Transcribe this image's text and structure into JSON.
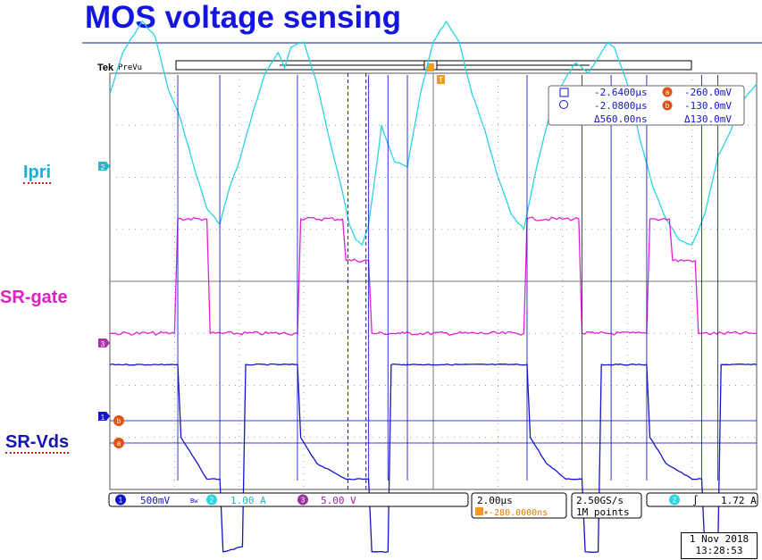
{
  "page": {
    "title": "MOS voltage sensing",
    "labels": {
      "ipri": "Ipri",
      "sr_gate": "SR-gate",
      "sr_vds": "SR-Vds"
    }
  },
  "scope": {
    "brand": "Tek",
    "mode": "PreVu",
    "trigger_marker": "T",
    "channel_markers": {
      "ch1": "1",
      "ch2": "2",
      "ch3": "3",
      "cursor_a": "a",
      "cursor_b": "b"
    },
    "cursor_readout": {
      "t1": "-2.6400µs",
      "v_a": "-260.0mV",
      "t2": "-2.0800µs",
      "v_b": "-130.0mV",
      "dt": "Δ560.00ns",
      "dv": "Δ130.0mV",
      "a_tag": "a",
      "b_tag": "b"
    },
    "status_bar": {
      "ch1_scale": "500mV",
      "ch1_bw": "Bw",
      "ch2_scale": "1.00 A",
      "ch3_scale": "5.00 V",
      "timebase": "2.00µs",
      "trigger_pos": "▾-280.0000ns",
      "sample_rate": "2.50GS/s",
      "record_length": "1M points",
      "trigger_source": "2",
      "trigger_slope": "∫",
      "trigger_level": "1.72 A"
    },
    "date": "1 Nov 2018",
    "time": "13:28:53",
    "colors": {
      "ch1": "#1414c8",
      "ch2": "#2ad4e0",
      "ch3": "#e020d8",
      "cursor": "#ff7a10",
      "title": "#1515e0"
    }
  },
  "chart_data": {
    "type": "line",
    "title": "MOS voltage sensing",
    "x_unit": "µs",
    "x_divisions": 10,
    "y_divisions": 8,
    "timebase_per_div": "2.00µs",
    "xlim": [
      -10.0,
      10.0
    ],
    "series": [
      {
        "name": "Ipri",
        "channel": 2,
        "scale_per_div": "1.00 A",
        "y_divisions_offset": 2.6,
        "x": [
          -10,
          -9.6,
          -9.0,
          -8.6,
          -8.2,
          -7.8,
          -7.4,
          -7.0,
          -6.6,
          -6.3,
          -6.0,
          -5.6,
          -5.2,
          -4.8,
          -4.6,
          -4.4,
          -4.0,
          -3.6,
          -3.2,
          -2.8,
          -2.6,
          -2.4,
          -2.2,
          -2.0,
          -1.8,
          -1.6,
          -1.2,
          -0.8,
          -0.4,
          0,
          0.4,
          0.8,
          1.2,
          1.6,
          2.0,
          2.4,
          2.8,
          3.0,
          3.2,
          3.6,
          4.0,
          4.4,
          4.8,
          5.2,
          5.4,
          5.6,
          6.0,
          6.4,
          6.8,
          7.2,
          7.6,
          8.0,
          8.4,
          8.8,
          9.2,
          9.6,
          10
        ],
        "values": [
          1.0,
          1.8,
          2.4,
          2.1,
          1.1,
          0.5,
          -0.4,
          -1.2,
          -1.5,
          -0.8,
          -0.3,
          0.6,
          1.4,
          1.8,
          1.5,
          1.9,
          2.0,
          1.2,
          0.1,
          -0.9,
          -1.5,
          -1.8,
          -1.9,
          -1.5,
          -0.6,
          0.4,
          -0.3,
          -0.4,
          1.0,
          2.0,
          2.4,
          2.0,
          1.0,
          0.3,
          -0.6,
          -1.3,
          -1.6,
          -1.0,
          -0.4,
          0.6,
          1.2,
          1.6,
          1.4,
          1.8,
          2.0,
          1.9,
          1.2,
          0.1,
          -0.8,
          -1.4,
          -1.8,
          -1.9,
          -1.3,
          -0.2,
          0.3,
          0.9,
          1.2
        ]
      },
      {
        "name": "SR-gate",
        "channel": 3,
        "scale_per_div": "5.00 V",
        "y_divisions_offset": -1.0,
        "x": [
          -10,
          -8.0,
          -7.9,
          -7.0,
          -6.9,
          -4.2,
          -4.1,
          -2.8,
          -2.7,
          -2.0,
          -1.9,
          -1.0,
          -0.9,
          2.8,
          2.9,
          4.5,
          4.6,
          5.0,
          5.1,
          6.6,
          6.7,
          7.3,
          7.4,
          8.1,
          8.2,
          10
        ],
        "values": [
          0,
          0,
          2.2,
          2.2,
          0,
          0,
          2.2,
          2.2,
          1.4,
          1.4,
          0,
          0,
          0,
          0,
          2.2,
          2.2,
          0,
          0,
          0,
          0,
          2.2,
          2.2,
          1.4,
          1.4,
          0,
          0
        ]
      },
      {
        "name": "SR-Vds",
        "channel": 1,
        "scale_per_div": "500mV",
        "y_divisions_offset": -2.0,
        "x": [
          -10,
          -7.9,
          -7.8,
          -7.2,
          -7.0,
          -6.6,
          -6.5,
          -5.9,
          -5.8,
          -4.2,
          -4.1,
          -3.6,
          -3.0,
          -2.7,
          -2.6,
          -2.0,
          -1.9,
          -1.4,
          -1.3,
          -0.9,
          -0.8,
          2.9,
          3.0,
          3.5,
          4.1,
          4.6,
          4.7,
          5.1,
          5.2,
          5.6,
          5.7,
          6.6,
          6.7,
          7.2,
          8.0,
          8.3,
          8.4,
          8.8,
          8.9,
          10
        ],
        "values": [
          0.4,
          0.4,
          -1.0,
          -1.6,
          -1.8,
          -1.8,
          -3.2,
          -3.1,
          0.4,
          0.4,
          -1.0,
          -1.5,
          -1.7,
          -1.8,
          -1.8,
          -1.8,
          -3.2,
          -3.2,
          0.4,
          0.4,
          0.4,
          0.4,
          -1.0,
          -1.5,
          -1.8,
          -1.8,
          -3.2,
          -3.2,
          0.4,
          0.4,
          0.4,
          0.4,
          -1.0,
          -1.5,
          -1.8,
          -1.8,
          -3.2,
          -3.2,
          0.4,
          0.4
        ]
      }
    ],
    "cursors": {
      "vertical_t": [
        -2.64,
        -2.08
      ],
      "horizontal_v": [
        -260.0,
        -130.0
      ]
    }
  }
}
